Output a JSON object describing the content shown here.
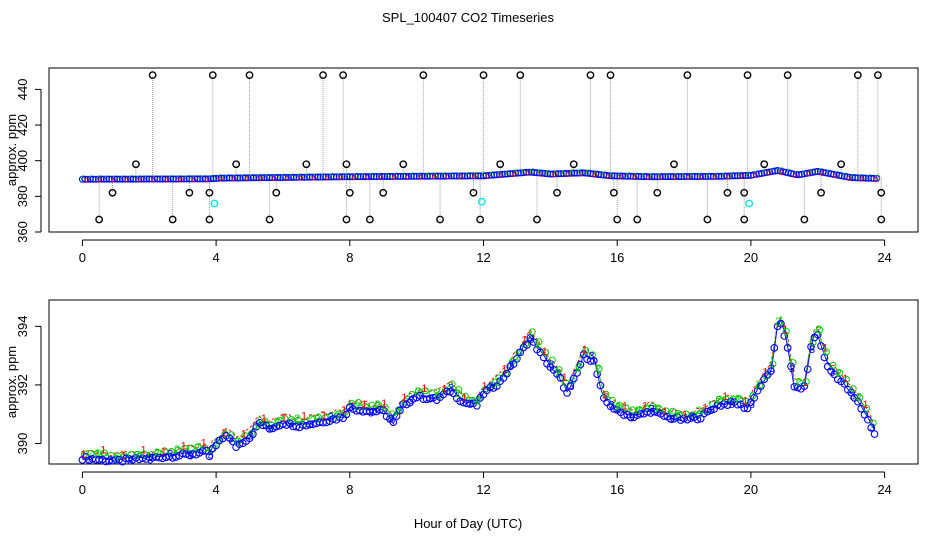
{
  "chart_data": {
    "title": "SPL_100407  CO2 Timeseries",
    "xlabel": "Hour of Day (UTC)",
    "colors": {
      "ch1": "#ff0000",
      "ch2": "#00cc00",
      "ch3": "#0000ff",
      "outlier": "#000000",
      "calibration": "#00e5ee",
      "connector": "#a0a0a0"
    },
    "panels": [
      {
        "type": "scatter",
        "ylabel": "approx. ppm",
        "xlim": [
          -1,
          25
        ],
        "ylim": [
          360,
          452
        ],
        "xticks": [
          0,
          4,
          8,
          12,
          16,
          20,
          24
        ],
        "yticks": [
          360,
          380,
          400,
          420,
          440
        ],
        "baseline": [
          [
            0,
            389.6
          ],
          [
            3.8,
            389.8
          ],
          [
            4.1,
            390.2
          ],
          [
            8,
            391.0
          ],
          [
            12,
            391.5
          ],
          [
            13.4,
            393.6
          ],
          [
            14.0,
            392.5
          ],
          [
            15.0,
            393.2
          ],
          [
            15.8,
            391.5
          ],
          [
            17.0,
            391.0
          ],
          [
            19.0,
            391.2
          ],
          [
            20.0,
            391.8
          ],
          [
            20.8,
            394.5
          ],
          [
            21.4,
            392.0
          ],
          [
            22.0,
            394.0
          ],
          [
            23.0,
            390.5
          ],
          [
            23.8,
            390.0
          ]
        ],
        "outliers_high": [
          2.1,
          3.9,
          5.0,
          7.2,
          7.8,
          10.2,
          12.0,
          13.1,
          15.2,
          15.8,
          18.1,
          19.9,
          21.1,
          23.2,
          23.8
        ],
        "outliers_mid": [
          1.6,
          4.6,
          6.7,
          7.9,
          9.6,
          12.5,
          14.7,
          17.7,
          20.4,
          22.7
        ],
        "outliers_low1": [
          0.9,
          3.2,
          3.8,
          5.8,
          8.0,
          9.0,
          11.7,
          14.2,
          15.9,
          17.2,
          19.3,
          19.8,
          22.1,
          23.9
        ],
        "outliers_low2": [
          0.5,
          2.7,
          3.8,
          5.6,
          7.9,
          8.6,
          10.7,
          11.9,
          13.6,
          16.0,
          16.6,
          18.7,
          19.8,
          21.6,
          23.9
        ],
        "calibration_points": [
          [
            3.95,
            376
          ],
          [
            11.95,
            377
          ],
          [
            19.95,
            376
          ]
        ]
      },
      {
        "type": "line",
        "ylabel": "approx. ppm",
        "xlim": [
          -1,
          25
        ],
        "ylim": [
          389.3,
          394.9
        ],
        "xticks": [
          0,
          4,
          8,
          12,
          16,
          20,
          24
        ],
        "yticks": [
          390,
          392,
          394
        ],
        "series": [
          {
            "name": "1",
            "marker": "1",
            "offset": 0.15
          },
          {
            "name": "2",
            "marker": "2",
            "offset": 0.07
          },
          {
            "name": "3",
            "marker": "3",
            "offset": -0.06
          }
        ],
        "baseline": [
          [
            0,
            389.6
          ],
          [
            1.0,
            389.5
          ],
          [
            2.0,
            389.6
          ],
          [
            3.0,
            389.7
          ],
          [
            3.7,
            389.8
          ],
          [
            3.85,
            389.6
          ],
          [
            3.9,
            389.9
          ],
          [
            4.3,
            390.4
          ],
          [
            4.6,
            390.0
          ],
          [
            5.0,
            390.3
          ],
          [
            5.3,
            390.8
          ],
          [
            5.6,
            390.6
          ],
          [
            6.0,
            390.8
          ],
          [
            6.5,
            390.7
          ],
          [
            7.0,
            390.8
          ],
          [
            7.8,
            391.0
          ],
          [
            8.0,
            391.3
          ],
          [
            8.6,
            391.2
          ],
          [
            9.0,
            391.2
          ],
          [
            9.3,
            390.8
          ],
          [
            9.6,
            391.4
          ],
          [
            10.0,
            391.7
          ],
          [
            10.6,
            391.6
          ],
          [
            11.0,
            391.9
          ],
          [
            11.4,
            391.5
          ],
          [
            11.8,
            391.4
          ],
          [
            12.0,
            391.8
          ],
          [
            12.5,
            392.2
          ],
          [
            13.0,
            393.0
          ],
          [
            13.4,
            393.7
          ],
          [
            13.8,
            393.0
          ],
          [
            14.3,
            392.3
          ],
          [
            14.5,
            391.8
          ],
          [
            14.8,
            392.5
          ],
          [
            15.0,
            393.1
          ],
          [
            15.3,
            392.9
          ],
          [
            15.6,
            391.6
          ],
          [
            15.8,
            391.4
          ],
          [
            16.0,
            391.2
          ],
          [
            16.5,
            391.0
          ],
          [
            17.0,
            391.2
          ],
          [
            17.5,
            391.0
          ],
          [
            18.0,
            390.9
          ],
          [
            18.5,
            391.0
          ],
          [
            19.0,
            391.4
          ],
          [
            19.5,
            391.5
          ],
          [
            19.9,
            391.3
          ],
          [
            20.2,
            391.9
          ],
          [
            20.6,
            392.6
          ],
          [
            20.85,
            394.4
          ],
          [
            21.1,
            393.4
          ],
          [
            21.3,
            392.0
          ],
          [
            21.6,
            392.0
          ],
          [
            21.85,
            393.7
          ],
          [
            22.0,
            393.8
          ],
          [
            22.3,
            392.7
          ],
          [
            22.8,
            392.1
          ],
          [
            23.2,
            391.5
          ],
          [
            23.5,
            390.9
          ],
          [
            23.8,
            390.2
          ]
        ]
      }
    ]
  }
}
